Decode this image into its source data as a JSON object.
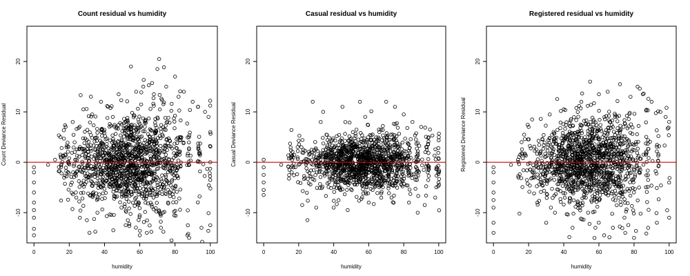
{
  "chart_data": [
    {
      "type": "scatter",
      "title": "Count residual vs humidity",
      "xlabel": "humidity",
      "ylabel": "Count Deviance Residual",
      "xlim": [
        -4,
        104
      ],
      "ylim": [
        -16,
        27
      ],
      "xticks": [
        0,
        20,
        40,
        60,
        80,
        100
      ],
      "yticks": [
        -10,
        0,
        10,
        20
      ],
      "xtick_labels": [
        "0",
        "20",
        "40",
        "60",
        "80",
        "100"
      ],
      "ytick_labels": [
        "-10",
        "0",
        "10",
        "20"
      ],
      "reference_line": {
        "y": 0,
        "color": "#cc0000"
      },
      "marker": "open-circle",
      "grid": false,
      "legend": "none",
      "cloud": {
        "center": [
          55,
          0
        ],
        "spread": [
          3.6,
          4.4
        ],
        "fan": 0.45,
        "count": 1400
      },
      "outliers": [
        [
          0,
          -14.5
        ],
        [
          0,
          -13.2
        ],
        [
          0,
          -11
        ],
        [
          0,
          -9.5
        ],
        [
          0,
          -8
        ],
        [
          0,
          -6
        ],
        [
          0,
          -4
        ],
        [
          0,
          -2
        ],
        [
          0,
          -1
        ],
        [
          8,
          -0.5
        ],
        [
          12,
          0.5
        ],
        [
          15,
          5
        ],
        [
          18,
          7
        ],
        [
          22,
          8
        ],
        [
          24,
          -7
        ],
        [
          28,
          10.5
        ],
        [
          30,
          -11.5
        ],
        [
          33,
          9.5
        ],
        [
          36,
          -10
        ],
        [
          38,
          12
        ],
        [
          42,
          11
        ],
        [
          45,
          -13.5
        ],
        [
          48,
          13.5
        ],
        [
          52,
          -12.5
        ],
        [
          55,
          19
        ],
        [
          58,
          14
        ],
        [
          60,
          -14.5
        ],
        [
          62,
          15
        ],
        [
          64,
          -14
        ],
        [
          68,
          13.5
        ],
        [
          70,
          18.5
        ],
        [
          71,
          20.5
        ],
        [
          72,
          -13
        ],
        [
          75,
          15
        ],
        [
          78,
          -15.5
        ],
        [
          80,
          17
        ],
        [
          82,
          13
        ],
        [
          85,
          14
        ],
        [
          87,
          -14.5
        ],
        [
          88,
          -15
        ],
        [
          90,
          12
        ],
        [
          93,
          11
        ],
        [
          95,
          -13
        ],
        [
          97,
          10
        ],
        [
          99,
          9
        ],
        [
          100,
          -12.5
        ],
        [
          100,
          6
        ]
      ]
    },
    {
      "type": "scatter",
      "title": "Casual residual vs humidity",
      "xlabel": "humidity",
      "ylabel": "Casual Deviance Residual",
      "xlim": [
        -4,
        104
      ],
      "ylim": [
        -16,
        27
      ],
      "xticks": [
        0,
        20,
        40,
        60,
        80,
        100
      ],
      "yticks": [
        -10,
        0,
        10,
        20
      ],
      "xtick_labels": [
        "0",
        "20",
        "40",
        "60",
        "80",
        "100"
      ],
      "ytick_labels": [
        "-10",
        "0",
        "10",
        "20"
      ],
      "reference_line": {
        "y": 0,
        "color": "#cc0000"
      },
      "marker": "open-circle",
      "grid": false,
      "legend": "none",
      "cloud": {
        "center": [
          58,
          0
        ],
        "spread": [
          2.4,
          2.6
        ],
        "fan": 0.35,
        "count": 1400
      },
      "outliers": [
        [
          0,
          0.5
        ],
        [
          0,
          -1
        ],
        [
          0,
          -2.5
        ],
        [
          0,
          -4
        ],
        [
          0,
          -5.5
        ],
        [
          0,
          -6.5
        ],
        [
          10,
          -0.5
        ],
        [
          16,
          -2
        ],
        [
          22,
          -8.5
        ],
        [
          25,
          -11.5
        ],
        [
          28,
          12
        ],
        [
          30,
          -9
        ],
        [
          34,
          10
        ],
        [
          40,
          -9
        ],
        [
          45,
          11
        ],
        [
          48,
          -9.5
        ],
        [
          55,
          12
        ],
        [
          60,
          -8
        ],
        [
          70,
          12
        ],
        [
          73,
          -7
        ],
        [
          75,
          11
        ],
        [
          80,
          9.5
        ],
        [
          83,
          -8
        ],
        [
          85,
          8
        ],
        [
          88,
          -10
        ],
        [
          90,
          7
        ],
        [
          92,
          -8.5
        ],
        [
          95,
          6.5
        ],
        [
          98,
          -7
        ],
        [
          100,
          5
        ]
      ]
    },
    {
      "type": "scatter",
      "title": "Registered residual vs humidity",
      "xlabel": "humidity",
      "ylabel": "Registered Deviance Residual",
      "xlim": [
        -4,
        104
      ],
      "ylim": [
        -16,
        27
      ],
      "xticks": [
        0,
        20,
        40,
        60,
        80,
        100
      ],
      "yticks": [
        -10,
        0,
        10,
        20
      ],
      "xtick_labels": [
        "0",
        "20",
        "40",
        "60",
        "80",
        "100"
      ],
      "ytick_labels": [
        "-10",
        "0",
        "10",
        "20"
      ],
      "reference_line": {
        "y": 0,
        "color": "#cc0000"
      },
      "marker": "open-circle",
      "grid": false,
      "legend": "none",
      "cloud": {
        "center": [
          55,
          0
        ],
        "spread": [
          3.4,
          4.0
        ],
        "fan": 0.45,
        "count": 1400
      },
      "outliers": [
        [
          0,
          -14
        ],
        [
          0,
          -12
        ],
        [
          0,
          -9
        ],
        [
          0,
          -7.5
        ],
        [
          0,
          -6
        ],
        [
          0,
          -4
        ],
        [
          0,
          -2
        ],
        [
          0,
          -1
        ],
        [
          10,
          -0.5
        ],
        [
          14,
          0.5
        ],
        [
          16,
          4
        ],
        [
          20,
          7
        ],
        [
          22,
          8.5
        ],
        [
          25,
          -8
        ],
        [
          30,
          -12
        ],
        [
          32,
          9.5
        ],
        [
          35,
          -10
        ],
        [
          40,
          10.5
        ],
        [
          45,
          -13
        ],
        [
          50,
          12
        ],
        [
          55,
          16
        ],
        [
          58,
          -13
        ],
        [
          60,
          13.5
        ],
        [
          63,
          -14.5
        ],
        [
          65,
          14
        ],
        [
          68,
          -13
        ],
        [
          72,
          15.5
        ],
        [
          75,
          -14
        ],
        [
          78,
          13
        ],
        [
          80,
          -15
        ],
        [
          82,
          15
        ],
        [
          85,
          13.5
        ],
        [
          88,
          -13
        ],
        [
          90,
          12
        ],
        [
          93,
          -12
        ],
        [
          95,
          10
        ],
        [
          98,
          9
        ],
        [
          100,
          -11
        ],
        [
          100,
          8
        ]
      ]
    }
  ]
}
